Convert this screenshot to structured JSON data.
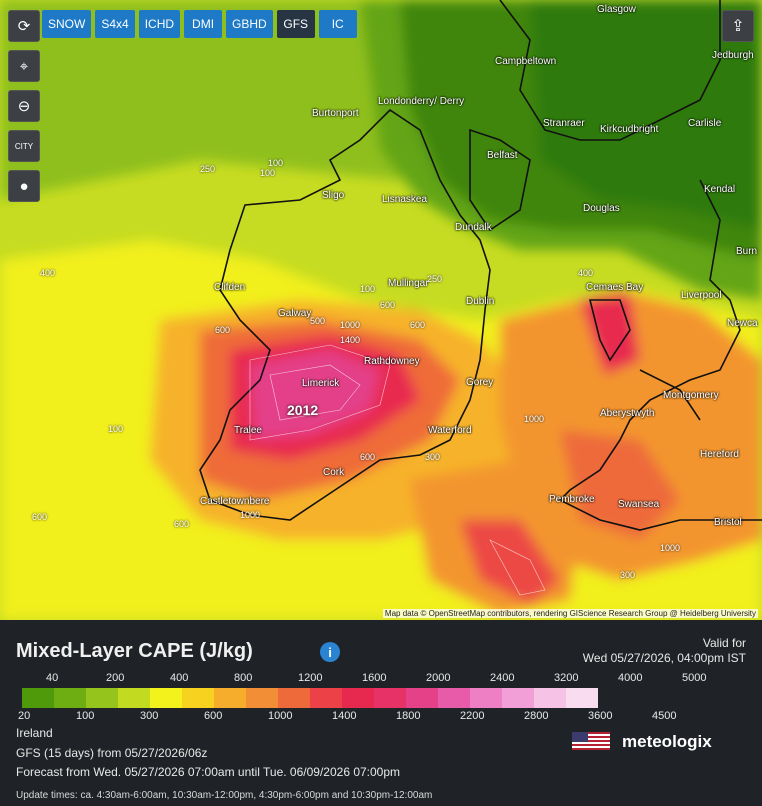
{
  "toolbar": {
    "models": [
      {
        "label": "SNOW",
        "active": false
      },
      {
        "label": "S4x4",
        "active": false
      },
      {
        "label": "ICHD",
        "active": false
      },
      {
        "label": "DMI",
        "active": false
      },
      {
        "label": "GBHD",
        "active": false
      },
      {
        "label": "GFS",
        "active": true
      },
      {
        "label": "IC",
        "active": false
      }
    ],
    "tools": [
      "refresh-icon",
      "location-pin-icon",
      "zoom-out-icon",
      "city-toggle-icon",
      "balloon-icon"
    ],
    "share_icon": "share-icon"
  },
  "map": {
    "peak_value": "2012",
    "cities": [
      {
        "name": "Glasgow"
      },
      {
        "name": "Jedburgh"
      },
      {
        "name": "Campbeltown"
      },
      {
        "name": "Londonderry/ Derry"
      },
      {
        "name": "Burtonport"
      },
      {
        "name": "Stranraer"
      },
      {
        "name": "Kirkcudbright"
      },
      {
        "name": "Carlisle"
      },
      {
        "name": "Belfast"
      },
      {
        "name": "Kendal"
      },
      {
        "name": "Sligo"
      },
      {
        "name": "Lisnaskea"
      },
      {
        "name": "Douglas"
      },
      {
        "name": "Dundalk"
      },
      {
        "name": "Burn"
      },
      {
        "name": "Clifden"
      },
      {
        "name": "Mullingar"
      },
      {
        "name": "Cemaes Bay"
      },
      {
        "name": "Liverpool"
      },
      {
        "name": "Galway"
      },
      {
        "name": "Dublin"
      },
      {
        "name": "Newca"
      },
      {
        "name": "Rathdowney"
      },
      {
        "name": "Limerick"
      },
      {
        "name": "Gorey"
      },
      {
        "name": "Montgomery"
      },
      {
        "name": "Aberystwyth"
      },
      {
        "name": "Tralee"
      },
      {
        "name": "Waterford"
      },
      {
        "name": "Hereford"
      },
      {
        "name": "Cork"
      },
      {
        "name": "Pembroke"
      },
      {
        "name": "Swansea"
      },
      {
        "name": "Castletownbere"
      },
      {
        "name": "Bristol"
      }
    ],
    "contour_labels": [
      "100",
      "250",
      "100",
      "400",
      "100",
      "250",
      "1000",
      "1400",
      "600",
      "600",
      "500",
      "400",
      "1000",
      "100",
      "600",
      "600",
      "600",
      "600",
      "1000",
      "1000",
      "300",
      "300"
    ],
    "attribution": "Map data © OpenStreetMap contributors, rendering GIScience Research Group @ Heidelberg University"
  },
  "legend": {
    "title": "Mixed-Layer CAPE (J/kg)",
    "valid_label": "Valid for",
    "valid_time": "Wed 05/27/2026, 04:00pm IST",
    "ticks_top": [
      "40",
      "200",
      "400",
      "800",
      "1200",
      "1600",
      "2000",
      "2400",
      "3200",
      "4000",
      "5000"
    ],
    "ticks_bottom": [
      "20",
      "100",
      "300",
      "600",
      "1000",
      "1400",
      "1800",
      "2200",
      "2800",
      "3600",
      "4500"
    ],
    "colors": [
      "#4f9a0a",
      "#6fae13",
      "#95c51c",
      "#c2db20",
      "#f3f21c",
      "#f7d21e",
      "#f6ad2b",
      "#f28e35",
      "#ee6a3a",
      "#ec4147",
      "#e8294f",
      "#e73268",
      "#e44189",
      "#e85ba9",
      "#ee7fc4",
      "#f29fd7",
      "#f6c2e6",
      "#f9dcf0"
    ],
    "region": "Ireland",
    "model_run": "GFS (15 days) from 05/27/2026/06z",
    "forecast_range": "Forecast from Wed. 05/27/2026 07:00am until Tue. 06/09/2026 07:00pm",
    "update_times": "Update times: ca. 4:30am-6:00am, 10:30am-12:00pm, 4:30pm-6:00pm and 10:30pm-12:00am",
    "brand": "meteologix"
  }
}
